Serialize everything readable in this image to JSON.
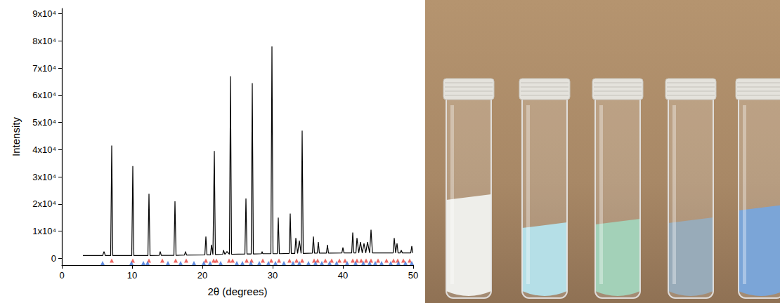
{
  "chart_data": {
    "type": "line",
    "x_label": "2θ (degrees)",
    "y_label": "Intensity",
    "xlim": [
      0,
      50
    ],
    "xticks": [
      0,
      10,
      20,
      30,
      40,
      50
    ],
    "ylim": [
      -2500,
      92000
    ],
    "yticks": [
      0,
      {
        "value": 10000,
        "label": "1x10⁴"
      },
      {
        "value": 20000,
        "label": "2x10⁴"
      },
      {
        "value": 30000,
        "label": "3x10⁴"
      },
      {
        "value": 40000,
        "label": "4x10⁴"
      },
      {
        "value": 50000,
        "label": "5x10⁴"
      },
      {
        "value": 60000,
        "label": "6x10⁴"
      },
      {
        "value": 70000,
        "label": "7x10⁴"
      },
      {
        "value": 80000,
        "label": "8x10⁴"
      },
      {
        "value": 90000,
        "label": "9x10⁴"
      }
    ],
    "grid": false,
    "series": [
      {
        "type": "line",
        "color": "#000000",
        "line_style": "solid",
        "x": [
          3,
          5.8,
          6.0,
          6.2,
          6.95,
          7.1,
          7.25,
          9.95,
          10.1,
          10.25,
          12.25,
          12.4,
          12.55,
          13.85,
          14.0,
          14.15,
          15.95,
          16.1,
          16.25,
          17.45,
          17.6,
          17.75,
          20.35,
          20.5,
          20.65,
          21.15,
          21.3,
          21.5,
          21.7,
          21.85,
          22.9,
          23.0,
          23.2,
          23.5,
          23.85,
          24.0,
          24.15,
          26.05,
          26.2,
          26.35,
          26.95,
          27.1,
          27.25,
          28.4,
          28.5,
          28.6,
          29.75,
          29.9,
          30.05,
          30.65,
          30.8,
          30.95,
          32.35,
          32.5,
          32.65,
          33.15,
          33.3,
          33.55,
          33.8,
          34.05,
          34.2,
          34.35,
          35.65,
          35.8,
          35.95,
          36.35,
          36.5,
          36.65,
          37.65,
          37.8,
          37.95,
          39.85,
          40.0,
          40.15,
          41.25,
          41.4,
          41.55,
          41.85,
          42.0,
          42.25,
          42.5,
          42.75,
          43.0,
          43.25,
          43.5,
          43.8,
          44.0,
          44.2,
          47.15,
          47.3,
          47.5,
          47.7,
          47.85,
          48.15,
          48.3,
          48.45,
          49.65,
          49.8,
          49.95,
          50
        ],
        "values": [
          1000,
          1000,
          2500,
          1000,
          1000,
          41500,
          1000,
          1000,
          34000,
          1000,
          1000,
          23800,
          1000,
          1100,
          2500,
          1100,
          1100,
          21000,
          1100,
          1200,
          2500,
          1200,
          1300,
          8000,
          1300,
          1300,
          5000,
          1400,
          39500,
          1400,
          1500,
          3000,
          1500,
          2500,
          1500,
          67000,
          1500,
          1600,
          22000,
          1600,
          1600,
          64500,
          1600,
          1700,
          2500,
          1700,
          1700,
          78000,
          1700,
          1700,
          15000,
          1700,
          1800,
          16500,
          1800,
          1800,
          7500,
          1800,
          6500,
          1800,
          47000,
          1800,
          1900,
          8000,
          1900,
          1900,
          6000,
          1900,
          1900,
          5000,
          1900,
          2000,
          4000,
          2000,
          2000,
          9500,
          2000,
          2000,
          7500,
          2000,
          6000,
          2000,
          5500,
          2000,
          6000,
          2000,
          10500,
          2000,
          2000,
          7500,
          2000,
          5500,
          2000,
          2000,
          3000,
          2000,
          2000,
          4500,
          2000,
          2000
        ]
      },
      {
        "type": "scatter",
        "color": "#e8403a",
        "marker": "triangle",
        "x": [
          7.1,
          10.1,
          12.4,
          14.3,
          16.2,
          17.7,
          20.5,
          21.6,
          22.0,
          23.8,
          24.3,
          26.3,
          27.0,
          28.6,
          29.8,
          30.9,
          32.4,
          33.4,
          34.2,
          35.9,
          36.4,
          37.5,
          38.4,
          39.5,
          40.3,
          41.4,
          42.0,
          42.6,
          43.3,
          44.0,
          45.0,
          46.2,
          47.2,
          47.8,
          48.6,
          49.5
        ],
        "values": [
          -800,
          -800,
          -800,
          -800,
          -800,
          -800,
          -800,
          -800,
          -800,
          -800,
          -800,
          -800,
          -800,
          -800,
          -800,
          -800,
          -800,
          -800,
          -800,
          -800,
          -800,
          -800,
          -800,
          -800,
          -800,
          -800,
          -800,
          -800,
          -800,
          -800,
          -800,
          -800,
          -800,
          -800,
          -800,
          -800
        ]
      },
      {
        "type": "scatter",
        "color": "#3a6fd8",
        "marker": "triangle",
        "x": [
          5.8,
          9.9,
          11.6,
          12.2,
          15.1,
          16.9,
          18.8,
          20.2,
          21.1,
          22.6,
          24.9,
          25.7,
          26.9,
          28.1,
          29.4,
          30.4,
          31.6,
          32.9,
          33.8,
          35.1,
          36.1,
          37.0,
          38.1,
          39.1,
          40.6,
          41.8,
          42.9,
          43.8,
          44.6,
          45.5,
          46.8,
          47.9,
          48.9,
          49.8
        ],
        "values": [
          -1700,
          -1700,
          -1700,
          -1700,
          -1700,
          -1700,
          -1700,
          -1700,
          -1700,
          -1700,
          -1700,
          -1700,
          -1700,
          -1700,
          -1700,
          -1700,
          -1700,
          -1700,
          -1700,
          -1700,
          -1700,
          -1700,
          -1700,
          -1700,
          -1700,
          -1700,
          -1700,
          -1700,
          -1700,
          -1700,
          -1700,
          -1700,
          -1700,
          -1700
        ]
      }
    ]
  }
}
